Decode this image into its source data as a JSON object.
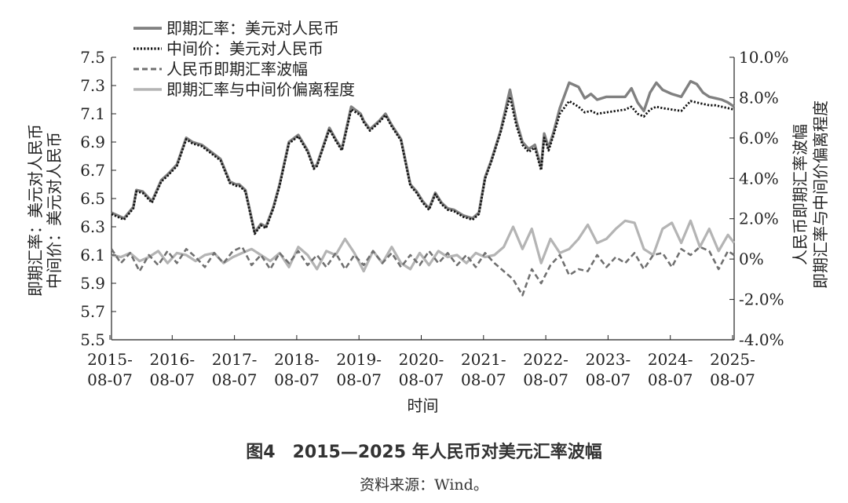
{
  "figure": {
    "title": "图4　2015—2025 年人民币对美元汇率波幅",
    "source": "资料来源：Wind。"
  },
  "chart_data": {
    "type": "line",
    "xlabel": "时间",
    "ylabel_left": [
      "即期汇率：美元对人民币",
      "中间价：美元对人民币"
    ],
    "ylabel_right": [
      "人民币即期汇率波幅",
      "即期汇率与中间价偏离程度"
    ],
    "x_ticks": [
      "2015-08-07",
      "2016-08-07",
      "2017-08-07",
      "2018-08-07",
      "2019-08-07",
      "2020-08-07",
      "2021-08-07",
      "2022-08-07",
      "2023-08-07",
      "2024-08-07",
      "2025-08-07"
    ],
    "y_left_ticks": [
      "7.5",
      "7.3",
      "7.1",
      "6.9",
      "6.7",
      "6.5",
      "6.3",
      "6.1",
      "5.9",
      "5.7",
      "5.5"
    ],
    "y_right_ticks": [
      "10.0%",
      "8.0%",
      "6.0%",
      "4.0%",
      "2.0%",
      "0%",
      "-2.0%",
      "-4.0%"
    ],
    "ylim_left": [
      5.5,
      7.5
    ],
    "ylim_right": [
      -4.0,
      10.0
    ],
    "xlim": [
      2015.6,
      2025.6
    ],
    "legend_position": "top-left",
    "series": [
      {
        "name": "即期汇率：美元对人民币",
        "axis": "left",
        "color": "#808080",
        "style": "solid",
        "x": [
          2015.6,
          2015.8,
          2015.95,
          2016.0,
          2016.1,
          2016.25,
          2016.4,
          2016.5,
          2016.65,
          2016.8,
          2016.9,
          2016.97,
          2017.05,
          2017.2,
          2017.35,
          2017.5,
          2017.6,
          2017.65,
          2017.75,
          2017.9,
          2018.0,
          2018.08,
          2018.2,
          2018.3,
          2018.45,
          2018.6,
          2018.75,
          2018.85,
          2018.9,
          2019.0,
          2019.1,
          2019.2,
          2019.3,
          2019.45,
          2019.6,
          2019.65,
          2019.75,
          2019.9,
          2020.0,
          2020.1,
          2020.25,
          2020.4,
          2020.5,
          2020.6,
          2020.7,
          2020.8,
          2020.9,
          2021.0,
          2021.1,
          2021.25,
          2021.4,
          2021.5,
          2021.6,
          2021.7,
          2021.85,
          2022.0,
          2022.1,
          2022.2,
          2022.3,
          2022.4,
          2022.5,
          2022.55,
          2022.62,
          2022.7,
          2022.8,
          2022.95,
          2023.1,
          2023.2,
          2023.3,
          2023.4,
          2023.55,
          2023.7,
          2023.85,
          2023.95,
          2024.05,
          2024.15,
          2024.25,
          2024.35,
          2024.45,
          2024.6,
          2024.75,
          2024.9,
          2025.0,
          2025.1,
          2025.2,
          2025.3,
          2025.4,
          2025.5,
          2025.6
        ],
        "y": [
          6.4,
          6.36,
          6.44,
          6.56,
          6.55,
          6.48,
          6.63,
          6.67,
          6.74,
          6.93,
          6.9,
          6.89,
          6.88,
          6.83,
          6.78,
          6.62,
          6.6,
          6.6,
          6.56,
          6.26,
          6.32,
          6.3,
          6.44,
          6.6,
          6.9,
          6.95,
          6.84,
          6.72,
          6.74,
          6.87,
          7.0,
          6.92,
          6.85,
          7.15,
          7.1,
          7.05,
          6.99,
          7.05,
          7.1,
          7.02,
          6.92,
          6.6,
          6.55,
          6.48,
          6.43,
          6.54,
          6.47,
          6.43,
          6.42,
          6.38,
          6.36,
          6.4,
          6.65,
          6.77,
          6.98,
          7.27,
          7.05,
          6.9,
          6.85,
          6.88,
          6.72,
          6.96,
          6.86,
          6.97,
          7.14,
          7.32,
          7.29,
          7.21,
          7.24,
          7.2,
          7.22,
          7.22,
          7.22,
          7.28,
          7.18,
          7.12,
          7.25,
          7.32,
          7.27,
          7.24,
          7.22,
          7.33,
          7.31,
          7.25,
          7.22,
          7.21,
          7.2,
          7.18,
          7.15
        ]
      },
      {
        "name": "中间价：美元对人民币",
        "axis": "left",
        "color": "#111111",
        "style": "dotted",
        "x": [
          2015.6,
          2015.8,
          2015.95,
          2016.0,
          2016.1,
          2016.25,
          2016.4,
          2016.5,
          2016.65,
          2016.8,
          2016.9,
          2016.97,
          2017.05,
          2017.2,
          2017.35,
          2017.5,
          2017.6,
          2017.65,
          2017.75,
          2017.9,
          2018.0,
          2018.08,
          2018.2,
          2018.3,
          2018.45,
          2018.6,
          2018.75,
          2018.85,
          2018.9,
          2019.0,
          2019.1,
          2019.2,
          2019.3,
          2019.45,
          2019.6,
          2019.65,
          2019.75,
          2019.9,
          2020.0,
          2020.1,
          2020.25,
          2020.4,
          2020.5,
          2020.6,
          2020.7,
          2020.8,
          2020.9,
          2021.0,
          2021.1,
          2021.25,
          2021.4,
          2021.5,
          2021.6,
          2021.7,
          2021.85,
          2022.0,
          2022.1,
          2022.2,
          2022.3,
          2022.4,
          2022.5,
          2022.55,
          2022.62,
          2022.7,
          2022.8,
          2022.95,
          2023.1,
          2023.2,
          2023.3,
          2023.4,
          2023.55,
          2023.7,
          2023.85,
          2023.95,
          2024.05,
          2024.15,
          2024.25,
          2024.35,
          2024.45,
          2024.6,
          2024.75,
          2024.9,
          2025.0,
          2025.1,
          2025.2,
          2025.3,
          2025.4,
          2025.5,
          2025.6
        ],
        "y": [
          6.39,
          6.35,
          6.43,
          6.55,
          6.54,
          6.47,
          6.62,
          6.66,
          6.73,
          6.92,
          6.89,
          6.88,
          6.87,
          6.82,
          6.77,
          6.61,
          6.59,
          6.59,
          6.55,
          6.25,
          6.31,
          6.29,
          6.43,
          6.59,
          6.89,
          6.94,
          6.83,
          6.71,
          6.73,
          6.86,
          6.99,
          6.91,
          6.84,
          7.13,
          7.09,
          7.04,
          6.98,
          7.04,
          7.09,
          7.01,
          6.91,
          6.59,
          6.54,
          6.47,
          6.42,
          6.53,
          6.46,
          6.42,
          6.41,
          6.37,
          6.35,
          6.39,
          6.64,
          6.76,
          6.97,
          7.22,
          7.02,
          6.88,
          6.83,
          6.86,
          6.7,
          6.93,
          6.84,
          6.95,
          7.1,
          7.19,
          7.15,
          7.11,
          7.12,
          7.1,
          7.11,
          7.12,
          7.13,
          7.15,
          7.1,
          7.08,
          7.13,
          7.15,
          7.14,
          7.13,
          7.12,
          7.19,
          7.18,
          7.17,
          7.16,
          7.16,
          7.15,
          7.14,
          7.13
        ]
      },
      {
        "name": "人民币即期汇率波幅",
        "axis": "right",
        "color": "#707070",
        "style": "dashed",
        "x": [
          2015.6,
          2015.75,
          2015.9,
          2016.05,
          2016.2,
          2016.35,
          2016.5,
          2016.65,
          2016.8,
          2016.95,
          2017.1,
          2017.25,
          2017.4,
          2017.55,
          2017.7,
          2017.85,
          2018.0,
          2018.15,
          2018.3,
          2018.45,
          2018.6,
          2018.75,
          2018.9,
          2019.05,
          2019.2,
          2019.35,
          2019.5,
          2019.65,
          2019.8,
          2019.95,
          2020.1,
          2020.25,
          2020.4,
          2020.55,
          2020.7,
          2020.85,
          2021.0,
          2021.15,
          2021.3,
          2021.45,
          2021.6,
          2021.75,
          2021.9,
          2022.05,
          2022.2,
          2022.35,
          2022.5,
          2022.65,
          2022.8,
          2022.95,
          2023.1,
          2023.25,
          2023.4,
          2023.55,
          2023.7,
          2023.85,
          2024.0,
          2024.15,
          2024.3,
          2024.45,
          2024.6,
          2024.75,
          2024.9,
          2025.05,
          2025.2,
          2025.35,
          2025.5,
          2025.6
        ],
        "y": [
          0.5,
          -0.2,
          0.3,
          -0.6,
          0.2,
          -0.3,
          0.4,
          -0.2,
          0.5,
          0.1,
          -0.4,
          0.3,
          -0.2,
          0.4,
          0.6,
          -0.3,
          0.2,
          -0.5,
          0.3,
          -0.2,
          0.4,
          -0.3,
          0.2,
          -0.4,
          0.3,
          -0.5,
          0.2,
          -0.3,
          0.4,
          -0.2,
          0.3,
          -0.4,
          0.2,
          -0.3,
          0.4,
          -0.2,
          0.3,
          -0.3,
          0.2,
          -0.4,
          0.3,
          -0.2,
          -0.6,
          -1.0,
          -1.8,
          -0.5,
          -1.2,
          -0.3,
          0.2,
          -0.8,
          -0.5,
          -0.6,
          0.2,
          -0.4,
          0.1,
          -0.2,
          0.3,
          -0.5,
          0.2,
          0.3,
          -0.4,
          0.5,
          0.2,
          0.6,
          0.4,
          -0.5,
          0.4,
          0.2
        ]
      },
      {
        "name": "即期汇率与中间价偏离程度",
        "axis": "right",
        "color": "#b4b4b4",
        "style": "solid",
        "x": [
          2015.6,
          2015.75,
          2015.9,
          2016.05,
          2016.2,
          2016.35,
          2016.5,
          2016.65,
          2016.8,
          2016.95,
          2017.1,
          2017.25,
          2017.4,
          2017.55,
          2017.7,
          2017.85,
          2018.0,
          2018.15,
          2018.3,
          2018.45,
          2018.6,
          2018.75,
          2018.9,
          2019.05,
          2019.2,
          2019.35,
          2019.5,
          2019.65,
          2019.8,
          2019.95,
          2020.1,
          2020.25,
          2020.4,
          2020.55,
          2020.7,
          2020.85,
          2021.0,
          2021.15,
          2021.3,
          2021.45,
          2021.6,
          2021.75,
          2021.9,
          2022.05,
          2022.2,
          2022.35,
          2022.5,
          2022.65,
          2022.8,
          2022.95,
          2023.1,
          2023.25,
          2023.4,
          2023.55,
          2023.7,
          2023.85,
          2024.0,
          2024.15,
          2024.3,
          2024.45,
          2024.6,
          2024.75,
          2024.9,
          2025.05,
          2025.2,
          2025.35,
          2025.5,
          2025.6
        ],
        "y": [
          0.2,
          0.1,
          0.3,
          -0.1,
          0.1,
          0.4,
          -0.2,
          0.3,
          0.2,
          -0.1,
          0.2,
          0.3,
          -0.2,
          0.1,
          0.3,
          0.5,
          0.2,
          -0.1,
          0.3,
          -0.4,
          0.6,
          0.2,
          -0.5,
          0.4,
          0.2,
          1.0,
          0.3,
          -0.6,
          0.4,
          -0.2,
          0.6,
          -0.2,
          -0.5,
          0.3,
          -0.3,
          0.4,
          0.1,
          0.2,
          -0.2,
          0.3,
          0.1,
          0.2,
          0.6,
          1.6,
          0.5,
          1.5,
          -0.2,
          1.0,
          0.3,
          0.5,
          1.0,
          1.7,
          0.8,
          1.0,
          1.5,
          1.9,
          1.8,
          0.5,
          0.2,
          1.5,
          1.8,
          0.8,
          1.9,
          0.6,
          1.5,
          0.4,
          1.2,
          0.8
        ]
      }
    ]
  }
}
